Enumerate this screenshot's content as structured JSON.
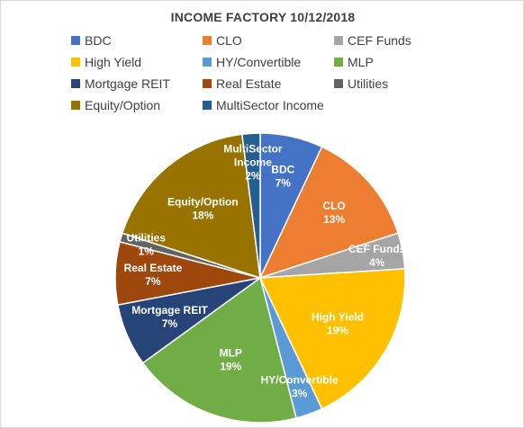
{
  "chart_data": {
    "type": "pie",
    "title": "INCOME FACTORY 10/12/2018",
    "legend_position": "top",
    "slices": [
      {
        "label": "BDC",
        "value": 7,
        "value_label": "7%",
        "color": "#4472C4"
      },
      {
        "label": "CLO",
        "value": 13,
        "value_label": "13%",
        "color": "#ED7D31"
      },
      {
        "label": "CEF Funds",
        "value": 4,
        "value_label": "4%",
        "color": "#A5A5A5"
      },
      {
        "label": "High Yield",
        "value": 19,
        "value_label": "19%",
        "color": "#FFC000"
      },
      {
        "label": "HY/Convertible",
        "value": 3,
        "value_label": "3%",
        "color": "#5B9BD5"
      },
      {
        "label": "MLP",
        "value": 19,
        "value_label": "19%",
        "color": "#70AD47"
      },
      {
        "label": "Mortgage REIT",
        "value": 7,
        "value_label": "7%",
        "color": "#264478"
      },
      {
        "label": "Real Estate",
        "value": 7,
        "value_label": "7%",
        "color": "#9E480E"
      },
      {
        "label": "Utilities",
        "value": 1,
        "value_label": "1%",
        "color": "#636363"
      },
      {
        "label": "Equity/Option",
        "value": 18,
        "value_label": "18%",
        "color": "#997300"
      },
      {
        "label": "MultiSector Income",
        "value": 2,
        "value_label": "2%",
        "color": "#255E91"
      }
    ]
  }
}
